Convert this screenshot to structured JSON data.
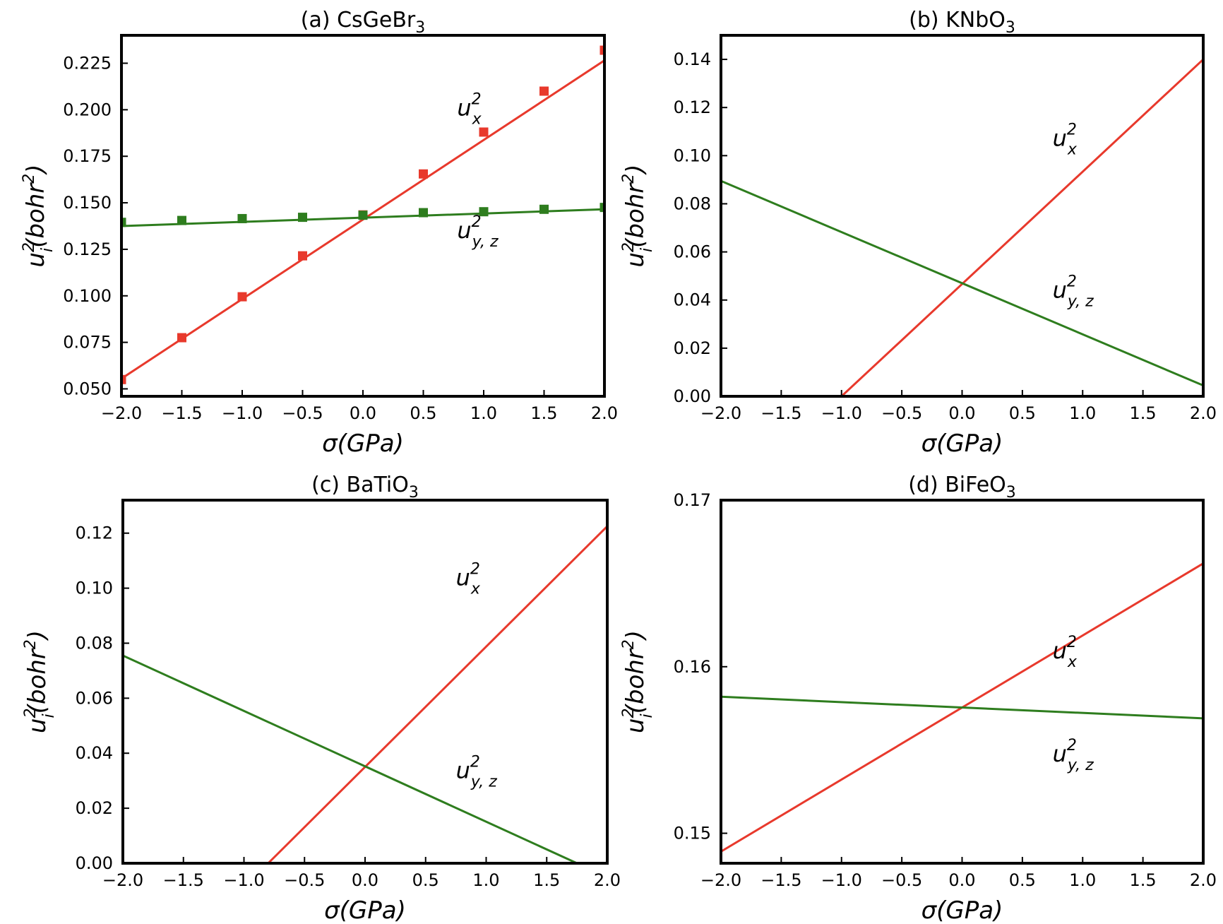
{
  "figure": {
    "x_label": "σ(GPa)",
    "y_label_base": "u",
    "y_label_sup": "2",
    "y_label_sub": "i",
    "y_label_rest": "(bohr",
    "y_label_sup2": "2",
    "y_label_close": ")"
  },
  "chart_data": [
    {
      "type": "line",
      "title": "(a) CsGeBr",
      "title_sub": "3",
      "xlabel": "σ(GPa)",
      "ylabel": "u_i^2(bohr^2)",
      "xlim": [
        -2.0,
        2.0
      ],
      "ylim": [
        0.046,
        0.24
      ],
      "xticks": [
        "−2.0",
        "−1.5",
        "−1.0",
        "−0.5",
        "0.0",
        "0.5",
        "1.0",
        "1.5",
        "2.0"
      ],
      "xtick_values": [
        -2.0,
        -1.5,
        -1.0,
        -0.5,
        0.0,
        0.5,
        1.0,
        1.5,
        2.0
      ],
      "yticks": [
        "0.050",
        "0.075",
        "0.100",
        "0.125",
        "0.150",
        "0.175",
        "0.200",
        "0.225"
      ],
      "ytick_values": [
        0.05,
        0.075,
        0.1,
        0.125,
        0.15,
        0.175,
        0.2,
        0.225
      ],
      "series": [
        {
          "name": "u_x^2",
          "color": "#e8392c",
          "line_x": [
            -2.0,
            2.0
          ],
          "line_y": [
            0.0555,
            0.2265
          ],
          "points_x": [
            -2.0,
            -1.5,
            -1.0,
            -0.5,
            0.0,
            0.5,
            1.0,
            1.5,
            2.0
          ],
          "points_y": [
            0.055,
            0.0775,
            0.0995,
            0.1215,
            0.1435,
            0.1655,
            0.188,
            0.21,
            0.232
          ]
        },
        {
          "name": "u_{y,z}^2",
          "color": "#2e7d1e",
          "line_x": [
            -2.0,
            2.0
          ],
          "line_y": [
            0.1375,
            0.1465
          ],
          "points_x": [
            -2.0,
            -1.5,
            -1.0,
            -0.5,
            0.0,
            0.5,
            1.0,
            1.5,
            2.0
          ],
          "points_y": [
            0.1395,
            0.1405,
            0.1415,
            0.1422,
            0.1433,
            0.1447,
            0.1452,
            0.1465,
            0.1475
          ]
        }
      ],
      "annotations": [
        {
          "base": "u",
          "sup": "2",
          "sub": "x",
          "x": 0.78,
          "y": 0.197
        },
        {
          "base": "u",
          "sup": "2",
          "sub": "y, z",
          "x": 0.78,
          "y": 0.131
        }
      ]
    },
    {
      "type": "line",
      "title": "(b) KNbO",
      "title_sub": "3",
      "xlabel": "σ(GPa)",
      "ylabel": "u_i^2(bohr^2)",
      "xlim": [
        -2.0,
        2.0
      ],
      "ylim": [
        0.0,
        0.15
      ],
      "xticks": [
        "−2.0",
        "−1.5",
        "−1.0",
        "−0.5",
        "0.0",
        "0.5",
        "1.0",
        "1.5",
        "2.0"
      ],
      "xtick_values": [
        -2.0,
        -1.5,
        -1.0,
        -0.5,
        0.0,
        0.5,
        1.0,
        1.5,
        2.0
      ],
      "yticks": [
        "0.00",
        "0.02",
        "0.04",
        "0.06",
        "0.08",
        "0.10",
        "0.12",
        "0.14"
      ],
      "ytick_values": [
        0.0,
        0.02,
        0.04,
        0.06,
        0.08,
        0.1,
        0.12,
        0.14
      ],
      "series": [
        {
          "name": "u_x^2",
          "color": "#e8392c",
          "line_x": [
            -1.0,
            2.0
          ],
          "line_y": [
            0.0,
            0.14
          ]
        },
        {
          "name": "u_{y,z}^2",
          "color": "#2e7d1e",
          "line_x": [
            -2.0,
            2.0
          ],
          "line_y": [
            0.0895,
            0.0045
          ]
        }
      ],
      "annotations": [
        {
          "base": "u",
          "sup": "2",
          "sub": "x",
          "x": 0.75,
          "y": 0.104
        },
        {
          "base": "u",
          "sup": "2",
          "sub": "y, z",
          "x": 0.75,
          "y": 0.041
        }
      ]
    },
    {
      "type": "line",
      "title": "(c) BaTiO",
      "title_sub": "3",
      "xlabel": "σ(GPa)",
      "ylabel": "u_i^2(bohr^2)",
      "xlim": [
        -2.0,
        2.0
      ],
      "ylim": [
        0.0,
        0.132
      ],
      "xticks": [
        "−2.0",
        "−1.5",
        "−1.0",
        "−0.5",
        "0.0",
        "0.5",
        "1.0",
        "1.5",
        "2.0"
      ],
      "xtick_values": [
        -2.0,
        -1.5,
        -1.0,
        -0.5,
        0.0,
        0.5,
        1.0,
        1.5,
        2.0
      ],
      "yticks": [
        "0.00",
        "0.02",
        "0.04",
        "0.06",
        "0.08",
        "0.10",
        "0.12"
      ],
      "ytick_values": [
        0.0,
        0.02,
        0.04,
        0.06,
        0.08,
        0.1,
        0.12
      ],
      "series": [
        {
          "name": "u_x^2",
          "color": "#e8392c",
          "line_x": [
            -0.8,
            2.0
          ],
          "line_y": [
            0.0,
            0.1225
          ]
        },
        {
          "name": "u_{y,z}^2",
          "color": "#2e7d1e",
          "line_x": [
            -2.0,
            1.75
          ],
          "line_y": [
            0.0755,
            0.0
          ]
        }
      ],
      "annotations": [
        {
          "base": "u",
          "sup": "2",
          "sub": "x",
          "x": 0.75,
          "y": 0.101
        },
        {
          "base": "u",
          "sup": "2",
          "sub": "y, z",
          "x": 0.75,
          "y": 0.031
        }
      ]
    },
    {
      "type": "line",
      "title": "(d) BiFeO",
      "title_sub": "3",
      "xlabel": "σ(GPa)",
      "ylabel": "u_i^2(bohr^2)",
      "xlim": [
        -2.0,
        2.0
      ],
      "ylim": [
        0.1482,
        0.17
      ],
      "xticks": [
        "−2.0",
        "−1.5",
        "−1.0",
        "−0.5",
        "0.0",
        "0.5",
        "1.0",
        "1.5",
        "2.0"
      ],
      "xtick_values": [
        -2.0,
        -1.5,
        -1.0,
        -0.5,
        0.0,
        0.5,
        1.0,
        1.5,
        2.0
      ],
      "yticks": [
        "0.15",
        "0.16",
        "0.17"
      ],
      "ytick_values": [
        0.15,
        0.16,
        0.17
      ],
      "series": [
        {
          "name": "u_x^2",
          "color": "#e8392c",
          "line_x": [
            -2.0,
            2.0
          ],
          "line_y": [
            0.1489,
            0.1662
          ]
        },
        {
          "name": "u_{y,z}^2",
          "color": "#2e7d1e",
          "line_x": [
            -2.0,
            2.0
          ],
          "line_y": [
            0.1582,
            0.1569
          ]
        }
      ],
      "annotations": [
        {
          "base": "u",
          "sup": "2",
          "sub": "x",
          "x": 0.75,
          "y": 0.1605
        },
        {
          "base": "u",
          "sup": "2",
          "sub": "y, z",
          "x": 0.75,
          "y": 0.1543
        }
      ]
    }
  ]
}
